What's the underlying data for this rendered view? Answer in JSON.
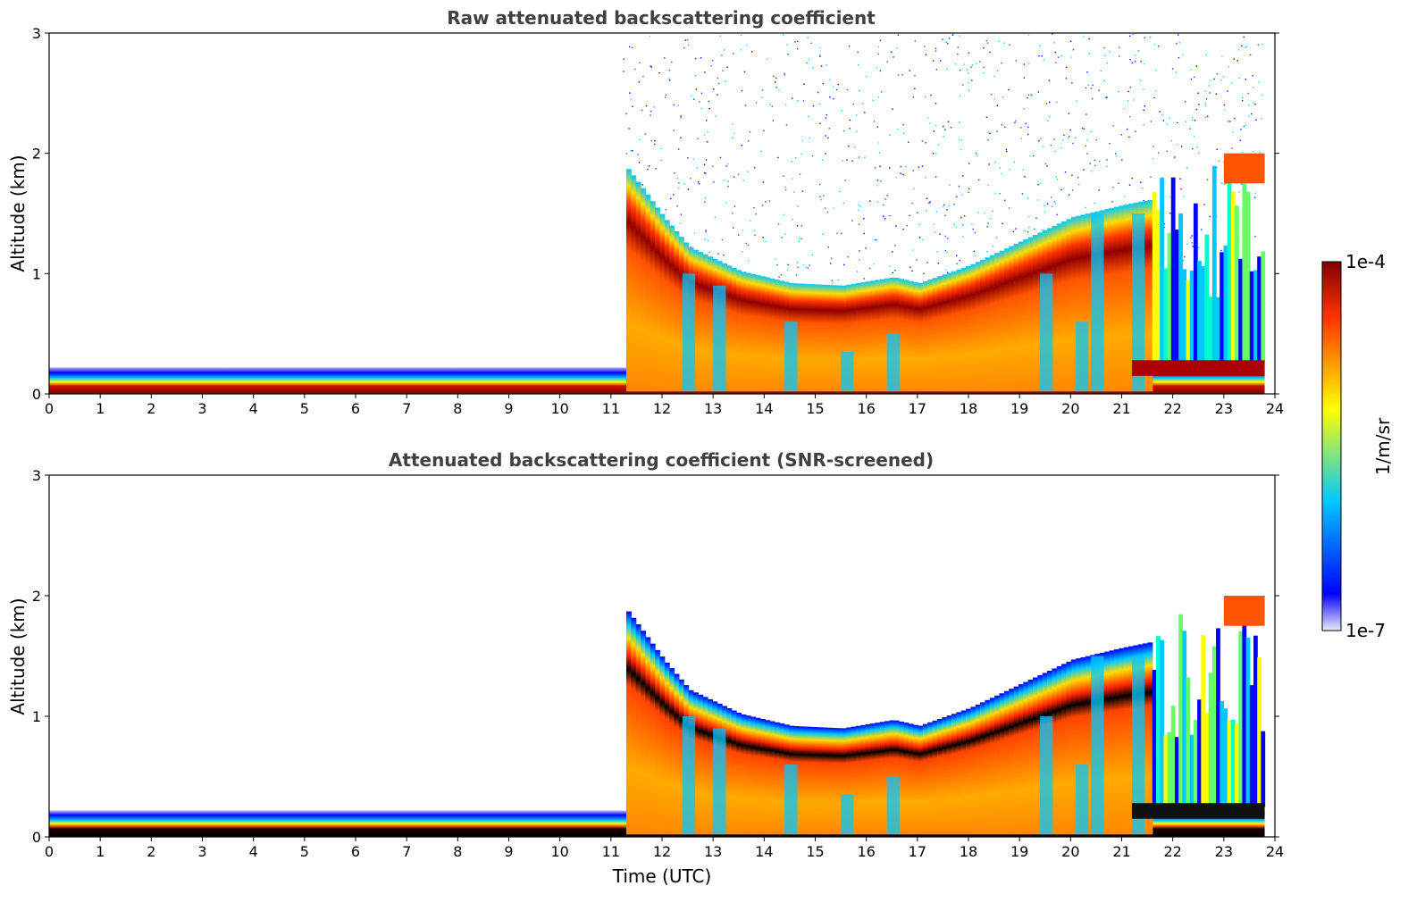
{
  "chart_data": [
    {
      "type": "heatmap",
      "title": "Raw attenuated backscattering coefficient",
      "xlabel": "",
      "ylabel": "Altitude (km)",
      "xlim": [
        0,
        24
      ],
      "ylim": [
        0,
        3
      ],
      "xticks": [
        "0",
        "1",
        "2",
        "3",
        "4",
        "5",
        "6",
        "7",
        "8",
        "9",
        "10",
        "11",
        "12",
        "13",
        "14",
        "15",
        "16",
        "17",
        "18",
        "19",
        "20",
        "21",
        "22",
        "23",
        "24"
      ],
      "yticks": [
        "0",
        "1",
        "2",
        "3"
      ],
      "layers": {
        "surface_layer_top_km": 0.22,
        "cloud_base_km_vs_time": [
          [
            11.3,
            1.75
          ],
          [
            12,
            1.35
          ],
          [
            12.5,
            1.1
          ],
          [
            13.5,
            0.9
          ],
          [
            14.5,
            0.8
          ],
          [
            15.5,
            0.78
          ],
          [
            16.5,
            0.85
          ],
          [
            17,
            0.8
          ],
          [
            18,
            0.95
          ],
          [
            19,
            1.15
          ],
          [
            20,
            1.35
          ],
          [
            21,
            1.45
          ],
          [
            21.6,
            1.5
          ]
        ],
        "upper_layer_km": [
          [
            23,
            1.9
          ],
          [
            23.8,
            1.85
          ]
        ]
      }
    },
    {
      "type": "heatmap",
      "title": "Attenuated backscattering coefficient (SNR-screened)",
      "xlabel": "Time (UTC)",
      "ylabel": "Altitude (km)",
      "xlim": [
        0,
        24
      ],
      "ylim": [
        0,
        3
      ],
      "xticks": [
        "0",
        "1",
        "2",
        "3",
        "4",
        "5",
        "6",
        "7",
        "8",
        "9",
        "10",
        "11",
        "12",
        "13",
        "14",
        "15",
        "16",
        "17",
        "18",
        "19",
        "20",
        "21",
        "22",
        "23",
        "24"
      ],
      "yticks": [
        "0",
        "1",
        "2",
        "3"
      ],
      "layers": {
        "surface_layer_top_km": 0.22,
        "cloud_base_km_vs_time": [
          [
            11.3,
            1.75
          ],
          [
            12,
            1.35
          ],
          [
            12.5,
            1.1
          ],
          [
            13.5,
            0.9
          ],
          [
            14.5,
            0.8
          ],
          [
            15.5,
            0.78
          ],
          [
            16.5,
            0.85
          ],
          [
            17,
            0.8
          ],
          [
            18,
            0.95
          ],
          [
            19,
            1.15
          ],
          [
            20,
            1.35
          ],
          [
            21,
            1.45
          ],
          [
            21.6,
            1.5
          ]
        ],
        "upper_layer_km": [
          [
            23,
            1.9
          ],
          [
            23.8,
            1.85
          ]
        ]
      }
    }
  ],
  "colorbar": {
    "label": "1/m/sr",
    "max_label": "1e-4",
    "min_label": "1e-7",
    "colormap": [
      "#ebebfa",
      "#0000ff",
      "#00c8ff",
      "#ffff00",
      "#ff3300",
      "#800000"
    ]
  }
}
